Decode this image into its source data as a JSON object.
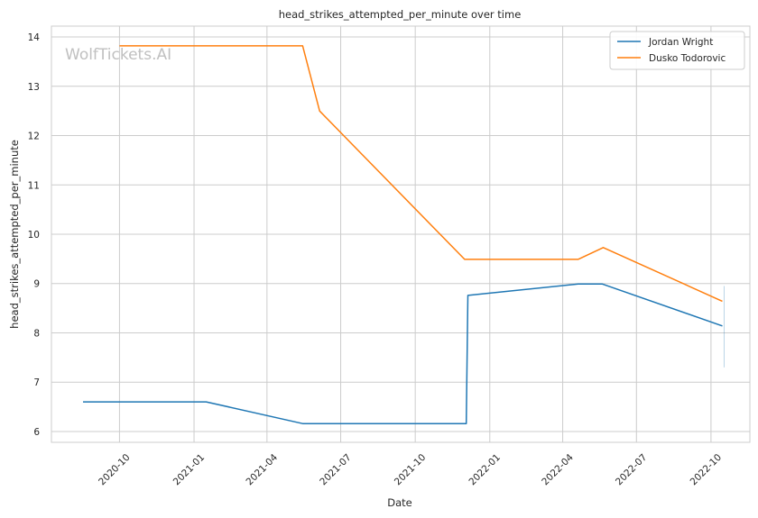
{
  "chart_data": {
    "type": "line",
    "title": "head_strikes_attempted_per_minute over time",
    "xlabel": "Date",
    "ylabel": "head_strikes_attempted_per_minute",
    "watermark": "WolfTickets.AI",
    "xlim": [
      "2020-07-09",
      "2022-11-18"
    ],
    "ylim": [
      5.78,
      14.22
    ],
    "x_ticks": [
      "2020-10",
      "2021-01",
      "2021-04",
      "2021-07",
      "2021-10",
      "2022-01",
      "2022-04",
      "2022-07",
      "2022-10"
    ],
    "y_ticks": [
      6,
      7,
      8,
      9,
      10,
      11,
      12,
      13,
      14
    ],
    "grid": true,
    "legend_position": "top-right",
    "series": [
      {
        "name": "Jordan Wright",
        "color": "#1f77b4",
        "points": [
          {
            "x": "2020-08-17",
            "y": 6.6
          },
          {
            "x": "2021-01-16",
            "y": 6.6
          },
          {
            "x": "2021-05-15",
            "y": 6.16
          },
          {
            "x": "2021-12-03",
            "y": 6.16
          },
          {
            "x": "2021-12-05",
            "y": 8.76
          },
          {
            "x": "2022-04-20",
            "y": 8.99
          },
          {
            "x": "2022-05-20",
            "y": 8.99
          },
          {
            "x": "2022-10-15",
            "y": 8.14
          }
        ]
      },
      {
        "name": "Dusko Todorovic",
        "color": "#ff7f0e",
        "points": [
          {
            "x": "2020-10-01",
            "y": 13.82
          },
          {
            "x": "2021-05-15",
            "y": 13.82
          },
          {
            "x": "2021-06-05",
            "y": 12.5
          },
          {
            "x": "2021-12-01",
            "y": 9.49
          },
          {
            "x": "2022-04-20",
            "y": 9.49
          },
          {
            "x": "2022-05-21",
            "y": 9.73
          },
          {
            "x": "2022-10-15",
            "y": 8.64
          }
        ]
      }
    ]
  }
}
